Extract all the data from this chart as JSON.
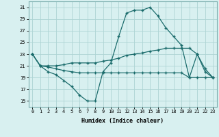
{
  "xlabel": "Humidex (Indice chaleur)",
  "bg_color": "#d8f0f0",
  "grid_color": "#aed4d4",
  "line_color": "#1a6b6b",
  "x": [
    0,
    1,
    2,
    3,
    4,
    5,
    6,
    7,
    8,
    9,
    10,
    11,
    12,
    13,
    14,
    15,
    16,
    17,
    18,
    19,
    20,
    21,
    22,
    23
  ],
  "line1": [
    23,
    21,
    20,
    19.5,
    18.5,
    17.5,
    16,
    15,
    15,
    20,
    21.5,
    26,
    30,
    30.5,
    30.5,
    31,
    29.5,
    27.5,
    26,
    24.5,
    19,
    23,
    20,
    19
  ],
  "line2": [
    23,
    21,
    21,
    21,
    21.2,
    21.5,
    21.5,
    21.5,
    21.5,
    21.8,
    22,
    22.3,
    22.8,
    23,
    23.2,
    23.5,
    23.7,
    24,
    24,
    24,
    24,
    23,
    20.5,
    19
  ],
  "line3": [
    23,
    21,
    20.8,
    20.5,
    20.2,
    20,
    19.8,
    19.8,
    19.8,
    19.8,
    19.8,
    19.8,
    19.8,
    19.8,
    19.8,
    19.8,
    19.8,
    19.8,
    19.8,
    19.8,
    19,
    19,
    19,
    19
  ],
  "ylim": [
    14,
    32
  ],
  "yticks": [
    15,
    17,
    19,
    21,
    23,
    25,
    27,
    29,
    31
  ],
  "xticks": [
    0,
    1,
    2,
    3,
    4,
    5,
    6,
    7,
    8,
    9,
    10,
    11,
    12,
    13,
    14,
    15,
    16,
    17,
    18,
    19,
    20,
    21,
    22,
    23
  ]
}
